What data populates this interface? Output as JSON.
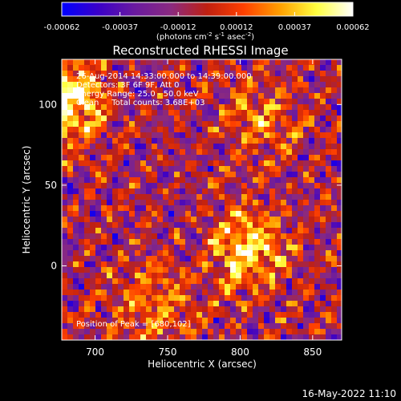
{
  "chart_data": {
    "type": "heatmap",
    "title": "Reconstructed RHESSI Image",
    "colorbar": {
      "ticks": [
        "-0.00062",
        "-0.00037",
        "-0.00012",
        "0.00012",
        "0.00037",
        "0.00062"
      ],
      "unit_prefix": "(photons cm",
      "unit_sup1": "-2",
      "unit_mid": " s",
      "unit_sup2": "-1",
      "unit_mid2": " asec",
      "unit_sup3": "-2",
      "unit_suffix": ")",
      "colors": [
        "#0000ff",
        "#3a00c8",
        "#6a1aa0",
        "#8a2a80",
        "#c02010",
        "#ff4000",
        "#ffa000",
        "#ffff40",
        "#ffffff"
      ]
    },
    "xlabel": "Heliocentric X (arcsec)",
    "ylabel": "Heliocentric Y (arcsec)",
    "xlim": [
      677,
      870
    ],
    "ylim": [
      -46,
      128
    ],
    "xticks": [
      700,
      750,
      800,
      850
    ],
    "yticks": [
      0,
      50,
      100
    ],
    "annotations": [
      "26-Aug-2014 14:33:00.000 to 14:39:00.000",
      "Detectors: 3F 6F 9F, Att 0",
      "Energy Range: 25.0 - 50.0 keV",
      "Clean     Total counts: 3.68E+03"
    ],
    "peak_label": "Position of Peak = [680,102]",
    "sources": [
      {
        "x": 680,
        "y": 102,
        "amplitude": 1.0
      },
      {
        "x": 805,
        "y": 10,
        "amplitude": 0.8
      },
      {
        "x": 740,
        "y": -25,
        "amplitude": 0.5
      },
      {
        "x": 815,
        "y": 90,
        "amplitude": 0.45
      }
    ],
    "grid": false
  },
  "footer": {
    "date_stamp": "16-May-2022 11:10"
  }
}
